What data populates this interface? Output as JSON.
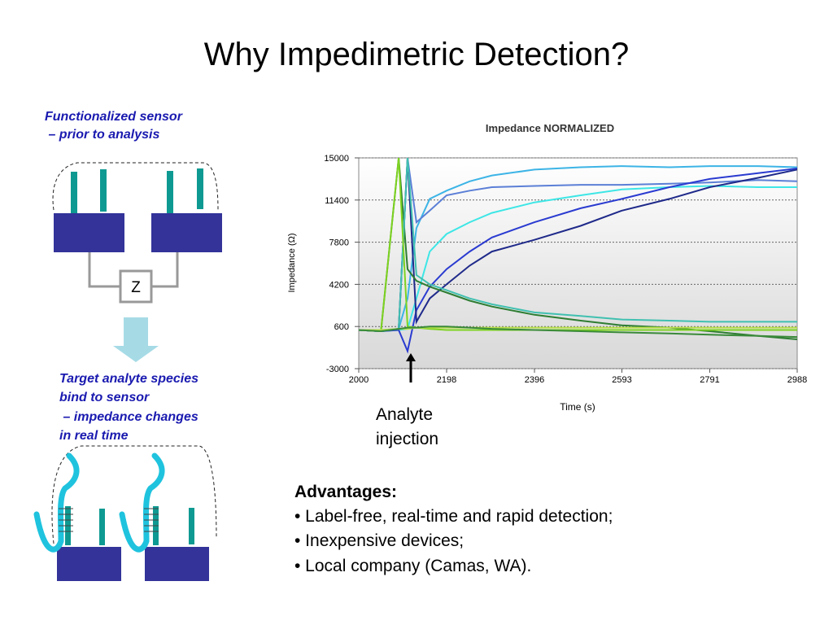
{
  "slide": {
    "title": "Why Impedimetric Detection?",
    "caption_top": [
      "Functionalized sensor",
      " – prior to analysis"
    ],
    "caption_bottom": [
      "Target analyte species",
      "bind to sensor",
      " – impedance changes",
      "in real time"
    ],
    "z_label": "Z",
    "advantages_heading": "Advantages:",
    "bullets": [
      "• Label-free, real-time and rapid detection;",
      "• Inexpensive devices;",
      "• Local company (Camas, WA)."
    ],
    "annotation": [
      "Analyte",
      "injection"
    ]
  },
  "chart_data": {
    "type": "line",
    "title": "Impedance NORMALIZED",
    "xlabel": "Time (s)",
    "ylabel": "Impedance (Ω)",
    "xlim": [
      2000,
      2988
    ],
    "ylim": [
      -3000,
      15000
    ],
    "xticks": [
      2000,
      2198,
      2396,
      2593,
      2791,
      2988
    ],
    "yticks": [
      -3000,
      600,
      4200,
      7800,
      11400,
      15000
    ],
    "grid": true,
    "x": [
      2000,
      2050,
      2090,
      2110,
      2130,
      2160,
      2198,
      2250,
      2300,
      2396,
      2500,
      2593,
      2700,
      2791,
      2900,
      2988
    ],
    "series": [
      {
        "color": "#3cb4e6",
        "values": [
          300,
          200,
          400,
          3000,
          9000,
          11500,
          12200,
          13000,
          13500,
          14000,
          14200,
          14300,
          14200,
          14300,
          14300,
          14200
        ]
      },
      {
        "color": "#5b7fd6",
        "values": [
          300,
          200,
          400,
          15000,
          9500,
          10500,
          11800,
          12200,
          12500,
          12600,
          12700,
          12700,
          12800,
          12900,
          13100,
          13000
        ]
      },
      {
        "color": "#3ee6e6",
        "values": [
          300,
          200,
          300,
          400,
          3000,
          7000,
          8500,
          9500,
          10300,
          11200,
          11800,
          12300,
          12500,
          12600,
          12500,
          12500
        ]
      },
      {
        "color": "#2a3bd0",
        "values": [
          300,
          200,
          300,
          -1500,
          2000,
          4000,
          5500,
          7000,
          8200,
          9500,
          10700,
          11500,
          12500,
          13200,
          13700,
          14100
        ]
      },
      {
        "color": "#1f2a8a",
        "values": [
          300,
          200,
          400,
          15000,
          1000,
          3000,
          4200,
          5800,
          7000,
          8000,
          9200,
          10500,
          11500,
          12500,
          13300,
          14000
        ]
      },
      {
        "color": "#2e7d32",
        "values": [
          300,
          200,
          15000,
          5500,
          4500,
          4000,
          3500,
          2800,
          2300,
          1600,
          1100,
          700,
          500,
          200,
          -200,
          -500
        ]
      },
      {
        "color": "#40c0b0",
        "values": [
          300,
          200,
          400,
          15000,
          5000,
          4200,
          3700,
          3000,
          2500,
          1800,
          1500,
          1200,
          1100,
          1000,
          1000,
          1000
        ]
      },
      {
        "color": "#7ed321",
        "values": [
          300,
          200,
          15000,
          600,
          500,
          400,
          300,
          300,
          300,
          300,
          300,
          300,
          300,
          300,
          300,
          300
        ]
      },
      {
        "color": "#b8e04a",
        "values": [
          300,
          300,
          400,
          400,
          500,
          500,
          500,
          500,
          500,
          500,
          500,
          500,
          500,
          500,
          500,
          500
        ]
      },
      {
        "color": "#3a8a3a",
        "values": [
          300,
          200,
          400,
          500,
          500,
          600,
          600,
          500,
          400,
          300,
          200,
          100,
          0,
          -100,
          -200,
          -300
        ]
      }
    ]
  }
}
